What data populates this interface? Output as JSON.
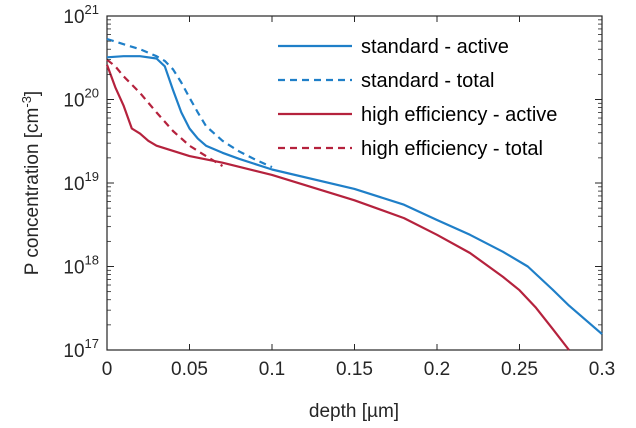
{
  "chart_data": {
    "type": "line",
    "xlabel": "depth [µm]",
    "ylabel": {
      "base": "P concentration [cm",
      "sup": "-3",
      "close": "]"
    },
    "xlim": [
      0,
      0.3
    ],
    "ylim": [
      1e+17,
      1e+21
    ],
    "yscale": "log",
    "grid": false,
    "legend_position": "top-right",
    "x_ticks": [
      "0",
      "0.05",
      "0.1",
      "0.15",
      "0.2",
      "0.25",
      "0.3"
    ],
    "x_tick_values": [
      0,
      0.05,
      0.1,
      0.15,
      0.2,
      0.25,
      0.3
    ],
    "y_ticks": [
      {
        "base": "10",
        "exp": "17"
      },
      {
        "base": "10",
        "exp": "18"
      },
      {
        "base": "10",
        "exp": "19"
      },
      {
        "base": "10",
        "exp": "20"
      },
      {
        "base": "10",
        "exp": "21"
      }
    ],
    "y_tick_values": [
      1e+17,
      1e+18,
      1e+19,
      1e+20,
      1e+21
    ],
    "series": [
      {
        "name": "standard - active",
        "color": "#1f7fc8",
        "dash": "solid",
        "points": [
          [
            0,
            3.2e+20
          ],
          [
            0.01,
            3.3e+20
          ],
          [
            0.02,
            3.3e+20
          ],
          [
            0.03,
            3.1e+20
          ],
          [
            0.035,
            2.5e+20
          ],
          [
            0.04,
            1.3e+20
          ],
          [
            0.045,
            7e+19
          ],
          [
            0.05,
            4.5e+19
          ],
          [
            0.055,
            3.4e+19
          ],
          [
            0.06,
            2.8e+19
          ],
          [
            0.07,
            2.3e+19
          ],
          [
            0.08,
            1.95e+19
          ],
          [
            0.1,
            1.45e+19
          ],
          [
            0.15,
            8.5e+18
          ],
          [
            0.18,
            5.5e+18
          ],
          [
            0.2,
            3.6e+18
          ],
          [
            0.22,
            2.4e+18
          ],
          [
            0.24,
            1.5e+18
          ],
          [
            0.255,
            1e+18
          ],
          [
            0.27,
            5.3e+17
          ],
          [
            0.28,
            3.4e+17
          ],
          [
            0.29,
            2.3e+17
          ],
          [
            0.3,
            1.55e+17
          ]
        ]
      },
      {
        "name": "standard - total",
        "color": "#1f7fc8",
        "dash": "dashed",
        "points": [
          [
            0,
            5.3e+20
          ],
          [
            0.01,
            4.6e+20
          ],
          [
            0.02,
            4e+20
          ],
          [
            0.03,
            3.3e+20
          ],
          [
            0.035,
            2.9e+20
          ],
          [
            0.04,
            2.3e+20
          ],
          [
            0.045,
            1.6e+20
          ],
          [
            0.05,
            1.05e+20
          ],
          [
            0.055,
            7e+19
          ],
          [
            0.06,
            4.8e+19
          ],
          [
            0.07,
            3.2e+19
          ],
          [
            0.08,
            2.4e+19
          ],
          [
            0.09,
            1.9e+19
          ],
          [
            0.1,
            1.55e+19
          ]
        ]
      },
      {
        "name": "high efficiency - active",
        "color": "#b5223d",
        "dash": "solid",
        "points": [
          [
            0,
            2.6e+20
          ],
          [
            0.005,
            1.4e+20
          ],
          [
            0.01,
            8.5e+19
          ],
          [
            0.015,
            4.5e+19
          ],
          [
            0.02,
            3.9e+19
          ],
          [
            0.025,
            3.2e+19
          ],
          [
            0.03,
            2.8e+19
          ],
          [
            0.05,
            2.1e+19
          ],
          [
            0.07,
            1.75e+19
          ],
          [
            0.1,
            1.25e+19
          ],
          [
            0.15,
            6.2e+18
          ],
          [
            0.18,
            3.8e+18
          ],
          [
            0.2,
            2.4e+18
          ],
          [
            0.22,
            1.45e+18
          ],
          [
            0.24,
            7.5e+17
          ],
          [
            0.25,
            5.2e+17
          ],
          [
            0.26,
            3.2e+17
          ],
          [
            0.27,
            1.8e+17
          ],
          [
            0.28,
            1e+17
          ]
        ]
      },
      {
        "name": "high efficiency - total",
        "color": "#b5223d",
        "dash": "dashed",
        "points": [
          [
            0,
            3e+20
          ],
          [
            0.005,
            2.5e+20
          ],
          [
            0.01,
            1.9e+20
          ],
          [
            0.02,
            1.2e+20
          ],
          [
            0.03,
            7e+19
          ],
          [
            0.04,
            4.2e+19
          ],
          [
            0.05,
            2.8e+19
          ],
          [
            0.06,
            2.1e+19
          ],
          [
            0.07,
            1.6e+19
          ]
        ]
      }
    ]
  }
}
